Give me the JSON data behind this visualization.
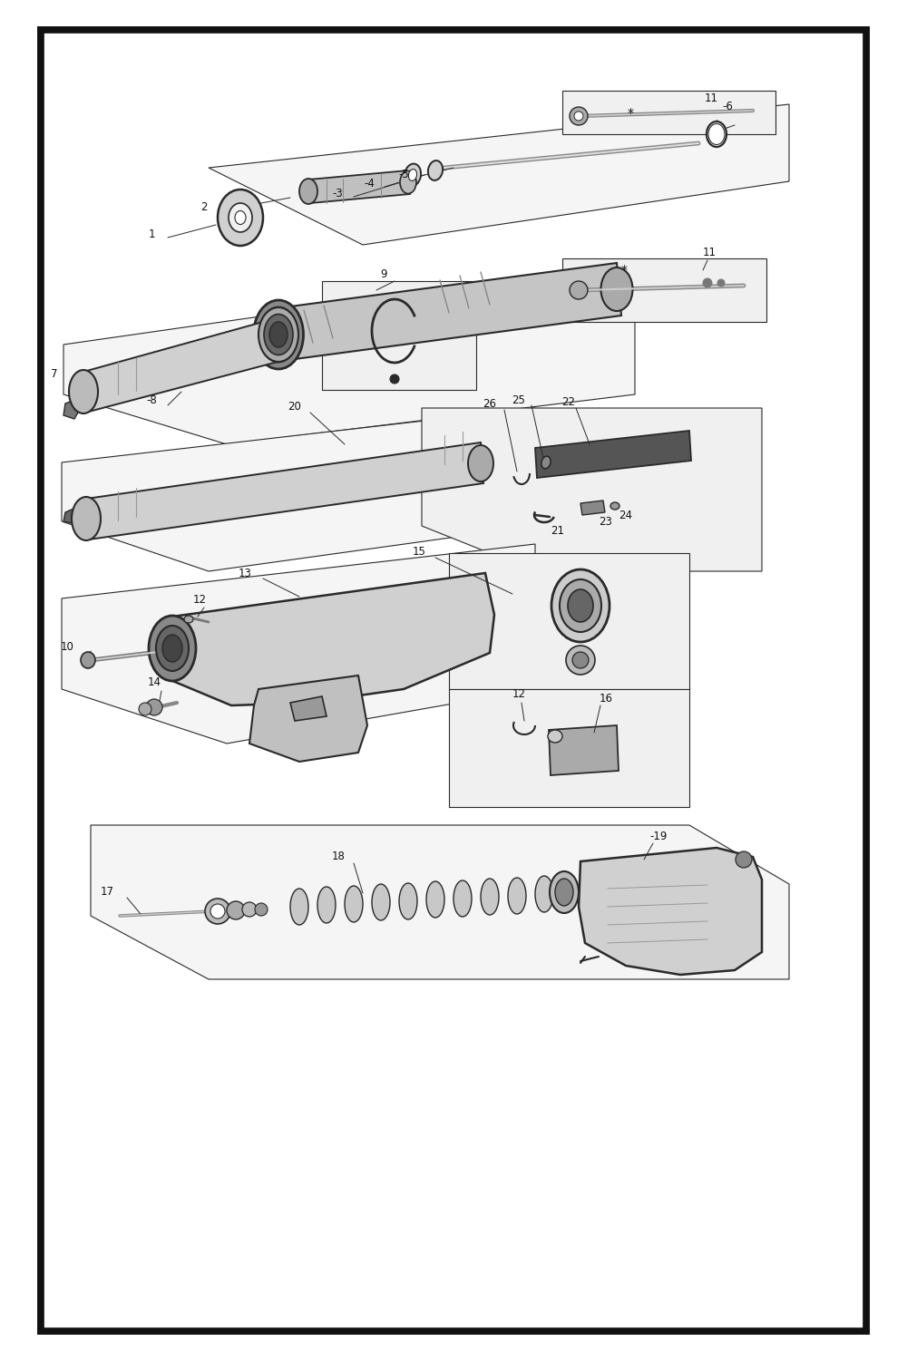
{
  "bg_color": "#ffffff",
  "border_color": "#111111",
  "line_color": "#2a2a2a",
  "gray_dark": "#444444",
  "gray_mid": "#777777",
  "gray_light": "#bbbbbb",
  "gray_fill": "#cccccc",
  "lw_border": 5.5,
  "lw_parts": 1.4,
  "lw_thin": 0.8,
  "lw_leader": 0.7,
  "figsize": [
    10,
    15.01
  ],
  "dpi": 100,
  "label_fs": 8.5,
  "border": [
    0.045,
    0.022,
    0.91,
    0.956
  ]
}
